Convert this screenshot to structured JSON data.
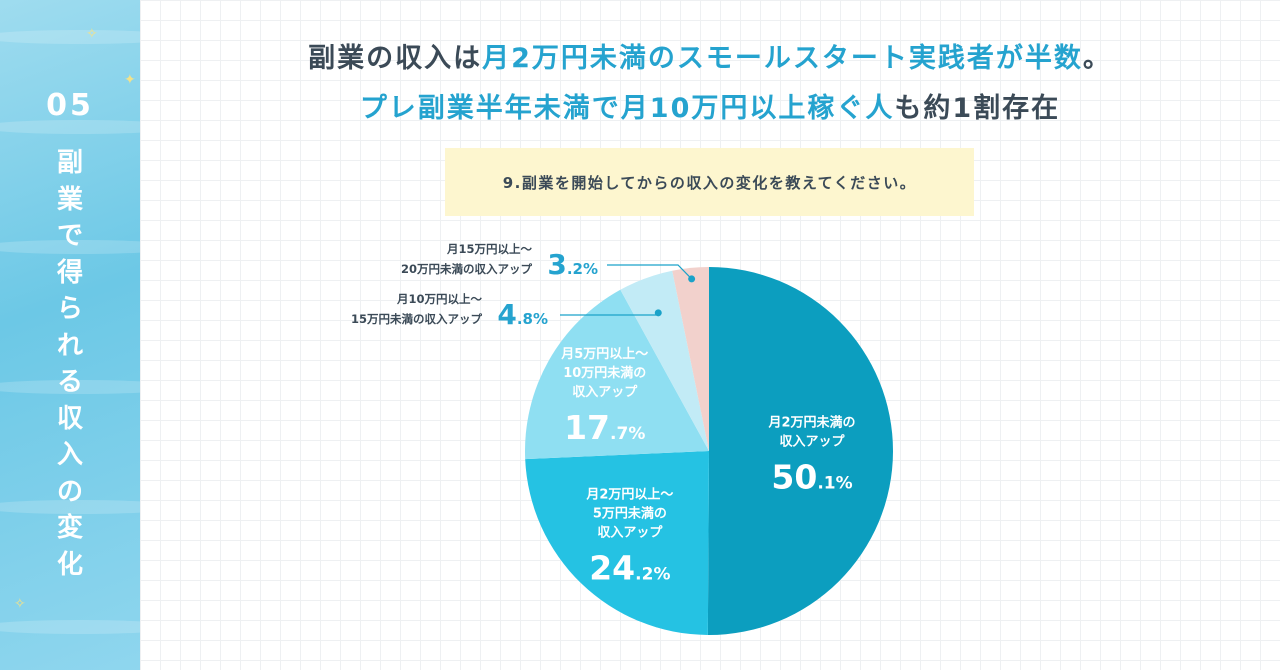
{
  "side": {
    "number": "05",
    "title_chars": [
      "副",
      "業",
      "で",
      "得",
      "ら",
      "れ",
      "る",
      "収",
      "入",
      "の",
      "変",
      "化"
    ]
  },
  "headline": {
    "line1": [
      {
        "text": "副業の収入は",
        "accent": false
      },
      {
        "text": "月2万円未満のスモールスタート実践者が半数",
        "accent": true
      },
      {
        "text": "。",
        "accent": false
      }
    ],
    "line2": [
      {
        "text": "プレ副業半年未満で月10万円以上稼ぐ人",
        "accent": true
      },
      {
        "text": "も約1割存在",
        "accent": false
      }
    ]
  },
  "question": "9.副業を開始してからの収入の変化を教えてください。",
  "colors": {
    "side_bg": "#6cc8e6",
    "accent_text": "#25a3cf",
    "dark_text": "#3b4a57",
    "question_bg": "#fdf6cf",
    "slice_1": "#0c9ebf",
    "slice_2": "#25c2e3",
    "slice_3": "#8fdff2",
    "slice_4": "#c2ebf6",
    "slice_5": "#f2d1cc",
    "leader": "#1aa2c9"
  },
  "chart_data": {
    "type": "pie",
    "unit": "%",
    "slices": [
      {
        "label_lines": [
          "月2万円未満の",
          "収入アップ"
        ],
        "value": 50.1,
        "int": "50",
        "dec": ".1",
        "color": "#0c9ebf"
      },
      {
        "label_lines": [
          "月2万円以上～",
          "5万円未満の",
          "収入アップ"
        ],
        "value": 24.2,
        "int": "24",
        "dec": ".2",
        "color": "#25c2e3"
      },
      {
        "label_lines": [
          "月5万円以上～",
          "10万円未満の",
          "収入アップ"
        ],
        "value": 17.7,
        "int": "17",
        "dec": ".7",
        "color": "#8fdff2"
      },
      {
        "label_lines": [
          "月10万円以上～",
          "15万円未満の収入アップ"
        ],
        "value": 4.8,
        "int": "4",
        "dec": ".8",
        "color": "#c2ebf6"
      },
      {
        "label_lines": [
          "月15万円以上～",
          "20万円未満の収入アップ"
        ],
        "value": 3.2,
        "int": "3",
        "dec": ".2",
        "color": "#f2d1cc"
      }
    ]
  }
}
